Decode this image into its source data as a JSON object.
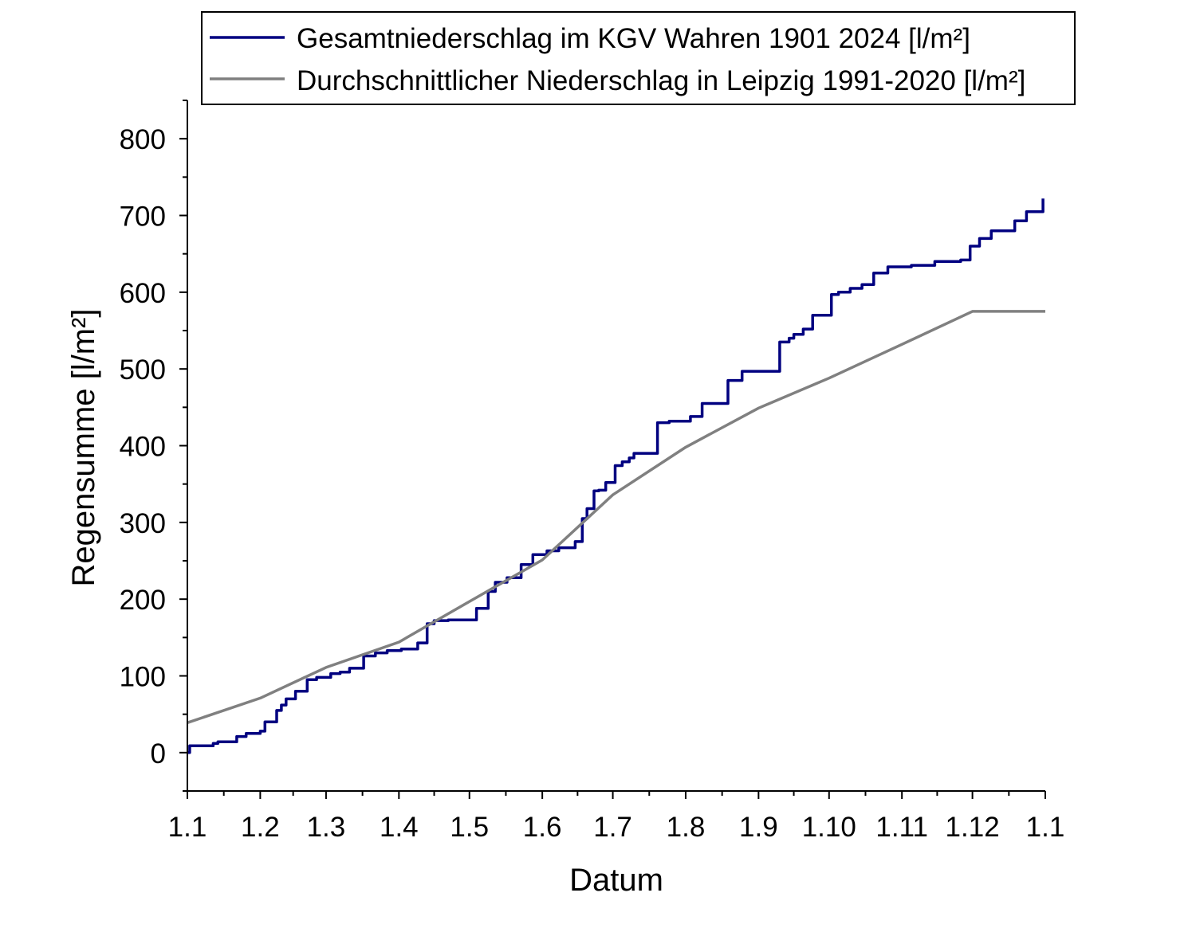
{
  "chart_data": {
    "type": "line",
    "title": "",
    "xlabel": "Datum",
    "ylabel": "Regensumme [l/m²]",
    "x_ticks": [
      "1.1",
      "1.2",
      "1.3",
      "1.4",
      "1.5",
      "1.6",
      "1.7",
      "1.8",
      "1.9",
      "1.10",
      "1.11",
      "1.12",
      "1.1"
    ],
    "y_ticks": [
      0,
      100,
      200,
      300,
      400,
      500,
      600,
      700,
      800
    ],
    "xlim": [
      "1.1.",
      "1.1. (following year)"
    ],
    "ylim": [
      -50,
      850
    ],
    "grid": false,
    "legend_position": "top",
    "series": [
      {
        "name": "Gesamtniederschlag im KGV Wahren 1901 2024 [l/m²]",
        "color": "#000080",
        "step": true,
        "x": [
          "1.1",
          "2.1",
          "12.1",
          "14.1",
          "22.1",
          "26.1",
          "1.2",
          "3.2",
          "8.2",
          "10.2",
          "12.2",
          "16.2",
          "21.2",
          "25.2",
          "28.2",
          "3.3",
          "7.3",
          "11.3",
          "17.3",
          "22.3",
          "27.3",
          "2.4",
          "9.4",
          "13.4",
          "16.4",
          "22.4",
          "29.4",
          "4.5",
          "9.5",
          "12.5",
          "17.5",
          "23.5",
          "28.5",
          "3.6",
          "8.6",
          "13.6",
          "15.6",
          "18.6",
          "20.6",
          "23.6",
          "25.6",
          "28.6",
          "2.7",
          "5.7",
          "8.7",
          "10.7",
          "13.7",
          "20.7",
          "25.7",
          "3.8",
          "8.8",
          "15.8",
          "19.8",
          "25.8",
          "31.8",
          "7.9",
          "10.9",
          "14.9",
          "16.9",
          "20.9",
          "24.9",
          "2.10",
          "5.10",
          "10.10",
          "15.10",
          "20.10",
          "26.10",
          "31.10",
          "5.11",
          "15.11",
          "20.11",
          "26.11",
          "30.11",
          "4.12",
          "9.12",
          "12.12",
          "19.12",
          "24.12",
          "31.12"
        ],
        "y": [
          0,
          9,
          12,
          14,
          21,
          25,
          28,
          40,
          55,
          62,
          70,
          80,
          95,
          98,
          98,
          103,
          105,
          110,
          126,
          130,
          133,
          135,
          143,
          168,
          172,
          173,
          173,
          188,
          210,
          222,
          228,
          245,
          258,
          263,
          267,
          267,
          275,
          305,
          318,
          341,
          342,
          352,
          374,
          379,
          384,
          390,
          390,
          430,
          432,
          438,
          455,
          455,
          485,
          497,
          497,
          497,
          535,
          540,
          545,
          552,
          570,
          597,
          600,
          605,
          610,
          625,
          633,
          633,
          635,
          640,
          640,
          642,
          660,
          670,
          680,
          680,
          693,
          705,
          722
        ]
      },
      {
        "name": "Durchschnittlicher Niederschlag in Leipzig 1991-2020 [l/m²]",
        "color": "#808080",
        "step": false,
        "x": [
          "1.1",
          "1.2",
          "1.3",
          "1.4",
          "1.5",
          "1.6",
          "1.7",
          "1.8",
          "1.9",
          "1.10",
          "1.11",
          "1.12",
          "1.1"
        ],
        "y": [
          39,
          71,
          111,
          144,
          197,
          251,
          336,
          398,
          449,
          488,
          532,
          575,
          575
        ]
      }
    ]
  }
}
